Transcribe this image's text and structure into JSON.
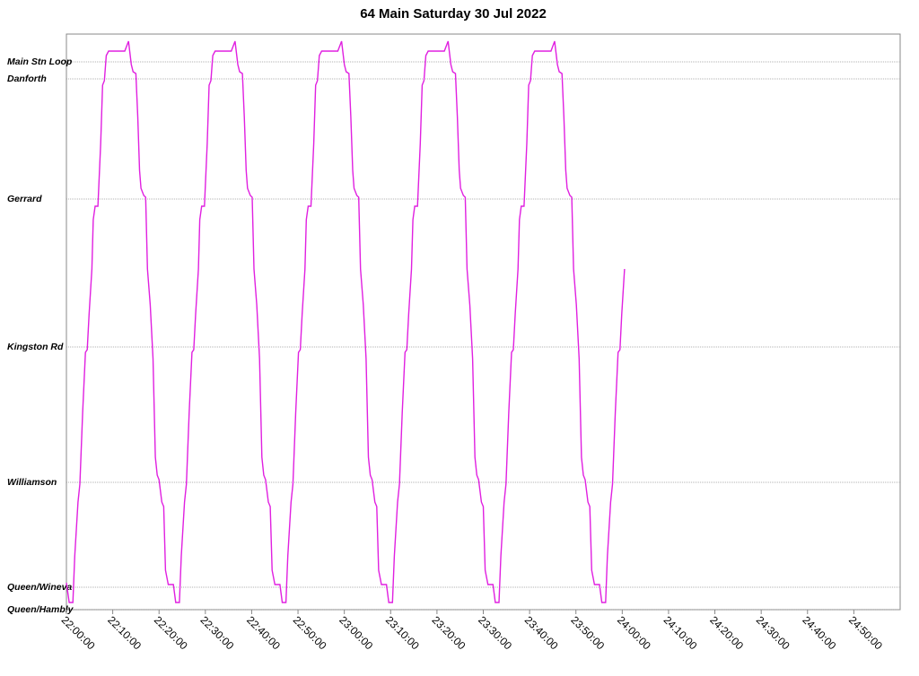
{
  "chart_data": {
    "type": "line",
    "title": "64 Main Saturday 30 Jul 2022",
    "grid": true,
    "xlim": [
      0,
      180
    ],
    "xticks": [
      {
        "value": 0,
        "label": "22:00:00"
      },
      {
        "value": 10,
        "label": "22:10:00"
      },
      {
        "value": 20,
        "label": "22:20:00"
      },
      {
        "value": 30,
        "label": "22:30:00"
      },
      {
        "value": 40,
        "label": "22:40:00"
      },
      {
        "value": 50,
        "label": "22:50:00"
      },
      {
        "value": 60,
        "label": "23:00:00"
      },
      {
        "value": 70,
        "label": "23:10:00"
      },
      {
        "value": 80,
        "label": "23:20:00"
      },
      {
        "value": 90,
        "label": "23:30:00"
      },
      {
        "value": 100,
        "label": "23:40:00"
      },
      {
        "value": 110,
        "label": "23:50:00"
      },
      {
        "value": 120,
        "label": "24:00:00"
      },
      {
        "value": 130,
        "label": "24:10:00"
      },
      {
        "value": 140,
        "label": "24:20:00"
      },
      {
        "value": 150,
        "label": "24:30:00"
      },
      {
        "value": 160,
        "label": "24:40:00"
      },
      {
        "value": 170,
        "label": "24:50:00"
      }
    ],
    "ylim": [
      0,
      6.42
    ],
    "yticks": [
      {
        "value": 0,
        "label": "Queen/Hambly"
      },
      {
        "value": 0.25,
        "label": "Queen/Wineva"
      },
      {
        "value": 1.42,
        "label": "Williamson"
      },
      {
        "value": 2.93,
        "label": "Kingston Rd"
      },
      {
        "value": 4.58,
        "label": "Gerrard"
      },
      {
        "value": 5.92,
        "label": "Danforth"
      },
      {
        "value": 6.11,
        "label": "Main Stn Loop"
      }
    ],
    "series": [
      {
        "color": "#e020e0",
        "x": [
          0,
          0.6,
          1.4,
          1.8,
          2.5,
          2.9,
          3.5,
          4.1,
          4.5,
          4.9,
          5.5,
          5.8,
          6.2,
          6.8,
          7.4,
          7.8,
          8.2,
          8.6,
          9.1,
          12.6,
          13.4,
          14.0,
          14.4,
          15.0,
          15.4,
          15.8,
          16.1,
          16.7,
          17.1,
          17.5,
          18.1,
          18.7,
          19.2,
          19.6,
          20.0,
          20.6,
          21.0,
          21.4,
          22.0,
          23.1,
          23.6,
          24.4,
          24.8,
          25.5,
          25.9,
          26.5,
          27.1,
          27.5,
          27.9,
          28.5,
          28.8,
          29.2,
          29.8,
          30.4,
          30.8,
          31.2,
          31.6,
          32.1,
          35.6,
          36.4,
          37.0,
          37.4,
          38.0,
          38.4,
          38.8,
          39.1,
          39.7,
          40.1,
          40.5,
          41.1,
          41.7,
          42.2,
          42.6,
          43.0,
          43.6,
          44.0,
          44.4,
          45.0,
          46.1,
          46.6,
          47.4,
          47.8,
          48.5,
          48.9,
          49.5,
          50.1,
          50.5,
          50.9,
          51.5,
          51.8,
          52.2,
          52.8,
          53.4,
          53.8,
          54.2,
          54.6,
          55.1,
          58.6,
          59.4,
          60.0,
          60.4,
          61.0,
          61.4,
          61.8,
          62.1,
          62.7,
          63.1,
          63.5,
          64.1,
          64.7,
          65.2,
          65.6,
          66.0,
          66.6,
          67.0,
          67.4,
          68.0,
          69.1,
          69.6,
          70.4,
          70.8,
          71.5,
          71.9,
          72.5,
          73.1,
          73.5,
          73.9,
          74.5,
          74.8,
          75.2,
          75.8,
          76.4,
          76.8,
          77.2,
          77.6,
          78.1,
          81.6,
          82.4,
          83.0,
          83.4,
          84.0,
          84.4,
          84.8,
          85.1,
          85.7,
          86.1,
          86.5,
          87.1,
          87.7,
          88.2,
          88.6,
          89.0,
          89.6,
          90.0,
          90.4,
          91.0,
          92.1,
          92.6,
          93.4,
          93.8,
          94.5,
          94.9,
          95.5,
          96.1,
          96.5,
          96.9,
          97.5,
          97.8,
          98.2,
          98.8,
          99.4,
          99.8,
          100.2,
          100.6,
          101.1,
          104.6,
          105.4,
          106.0,
          106.4,
          107.0,
          107.4,
          107.8,
          108.1,
          108.7,
          109.1,
          109.5,
          110.1,
          110.7,
          111.2,
          111.6,
          112.0,
          112.6,
          113.0,
          113.4,
          114.0,
          115.1,
          115.6,
          116.4,
          116.8,
          117.5,
          117.9,
          118.5,
          119.1,
          119.5,
          119.9,
          120.5
        ],
        "values": [
          0.3,
          0.08,
          0.08,
          0.6,
          1.2,
          1.4,
          2.2,
          2.87,
          2.9,
          3.3,
          3.8,
          4.35,
          4.5,
          4.5,
          5.2,
          5.85,
          5.9,
          6.18,
          6.23,
          6.23,
          6.34,
          6.08,
          6.0,
          5.98,
          5.5,
          4.9,
          4.7,
          4.62,
          4.6,
          3.8,
          3.4,
          2.8,
          1.7,
          1.5,
          1.45,
          1.2,
          1.15,
          0.44,
          0.28,
          0.28,
          0.08,
          0.08,
          0.6,
          1.2,
          1.4,
          2.2,
          2.87,
          2.9,
          3.3,
          3.8,
          4.35,
          4.5,
          4.5,
          5.2,
          5.85,
          5.9,
          6.18,
          6.23,
          6.23,
          6.34,
          6.08,
          6.0,
          5.98,
          5.5,
          4.9,
          4.7,
          4.62,
          4.6,
          3.8,
          3.4,
          2.8,
          1.7,
          1.5,
          1.45,
          1.2,
          1.15,
          0.44,
          0.28,
          0.28,
          0.08,
          0.08,
          0.6,
          1.2,
          1.4,
          2.2,
          2.87,
          2.9,
          3.3,
          3.8,
          4.35,
          4.5,
          4.5,
          5.2,
          5.85,
          5.9,
          6.18,
          6.23,
          6.23,
          6.34,
          6.08,
          6.0,
          5.98,
          5.5,
          4.9,
          4.7,
          4.62,
          4.6,
          3.8,
          3.4,
          2.8,
          1.7,
          1.5,
          1.45,
          1.2,
          1.15,
          0.44,
          0.28,
          0.28,
          0.08,
          0.08,
          0.6,
          1.2,
          1.4,
          2.2,
          2.87,
          2.9,
          3.3,
          3.8,
          4.35,
          4.5,
          4.5,
          5.2,
          5.85,
          5.9,
          6.18,
          6.23,
          6.23,
          6.34,
          6.08,
          6.0,
          5.98,
          5.5,
          4.9,
          4.7,
          4.62,
          4.6,
          3.8,
          3.4,
          2.8,
          1.7,
          1.5,
          1.45,
          1.2,
          1.15,
          0.44,
          0.28,
          0.28,
          0.08,
          0.08,
          0.6,
          1.2,
          1.4,
          2.2,
          2.87,
          2.9,
          3.3,
          3.8,
          4.35,
          4.5,
          4.5,
          5.2,
          5.85,
          5.9,
          6.18,
          6.23,
          6.23,
          6.34,
          6.08,
          6.0,
          5.98,
          5.5,
          4.9,
          4.7,
          4.62,
          4.6,
          3.8,
          3.4,
          2.8,
          1.7,
          1.5,
          1.45,
          1.2,
          1.15,
          0.44,
          0.28,
          0.28,
          0.08,
          0.08,
          0.6,
          1.2,
          1.4,
          2.2,
          2.87,
          2.9,
          3.3,
          3.8
        ]
      }
    ]
  }
}
